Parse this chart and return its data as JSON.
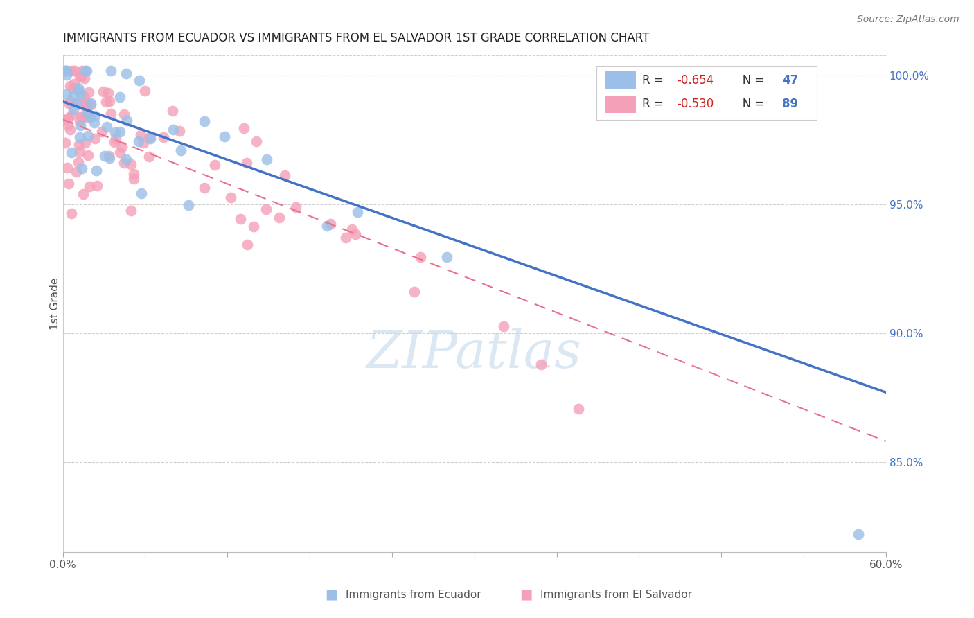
{
  "title": "IMMIGRANTS FROM ECUADOR VS IMMIGRANTS FROM EL SALVADOR 1ST GRADE CORRELATION CHART",
  "source": "Source: ZipAtlas.com",
  "ylabel": "1st Grade",
  "ylabel_right_ticks": [
    "100.0%",
    "95.0%",
    "90.0%",
    "85.0%"
  ],
  "ylabel_right_values": [
    1.0,
    0.95,
    0.9,
    0.85
  ],
  "xlim": [
    0.0,
    0.6
  ],
  "ylim": [
    0.815,
    1.008
  ],
  "ecuador_R": -0.654,
  "ecuador_N": 47,
  "salvador_R": -0.53,
  "salvador_N": 89,
  "ecuador_color": "#9BBFE8",
  "salvador_color": "#F4A0B8",
  "ecuador_line_color": "#4472C4",
  "salvador_line_color": "#E87090",
  "watermark": "ZIPatlas",
  "legend_label_ecuador": "Immigrants from Ecuador",
  "legend_label_salvador": "Immigrants from El Salvador",
  "ec_line_x0": 0.0,
  "ec_line_y0": 0.99,
  "ec_line_x1": 0.6,
  "ec_line_y1": 0.877,
  "sv_line_x0": 0.0,
  "sv_line_y0": 0.983,
  "sv_line_x1": 0.6,
  "sv_line_y1": 0.858,
  "xtick_positions": [
    0.0,
    0.06,
    0.12,
    0.18,
    0.24,
    0.3,
    0.36,
    0.42,
    0.48,
    0.54,
    0.6
  ],
  "xtick_labels_show": [
    "0.0%",
    "",
    "",
    "",
    "",
    "",
    "",
    "",
    "",
    "",
    "60.0%"
  ]
}
